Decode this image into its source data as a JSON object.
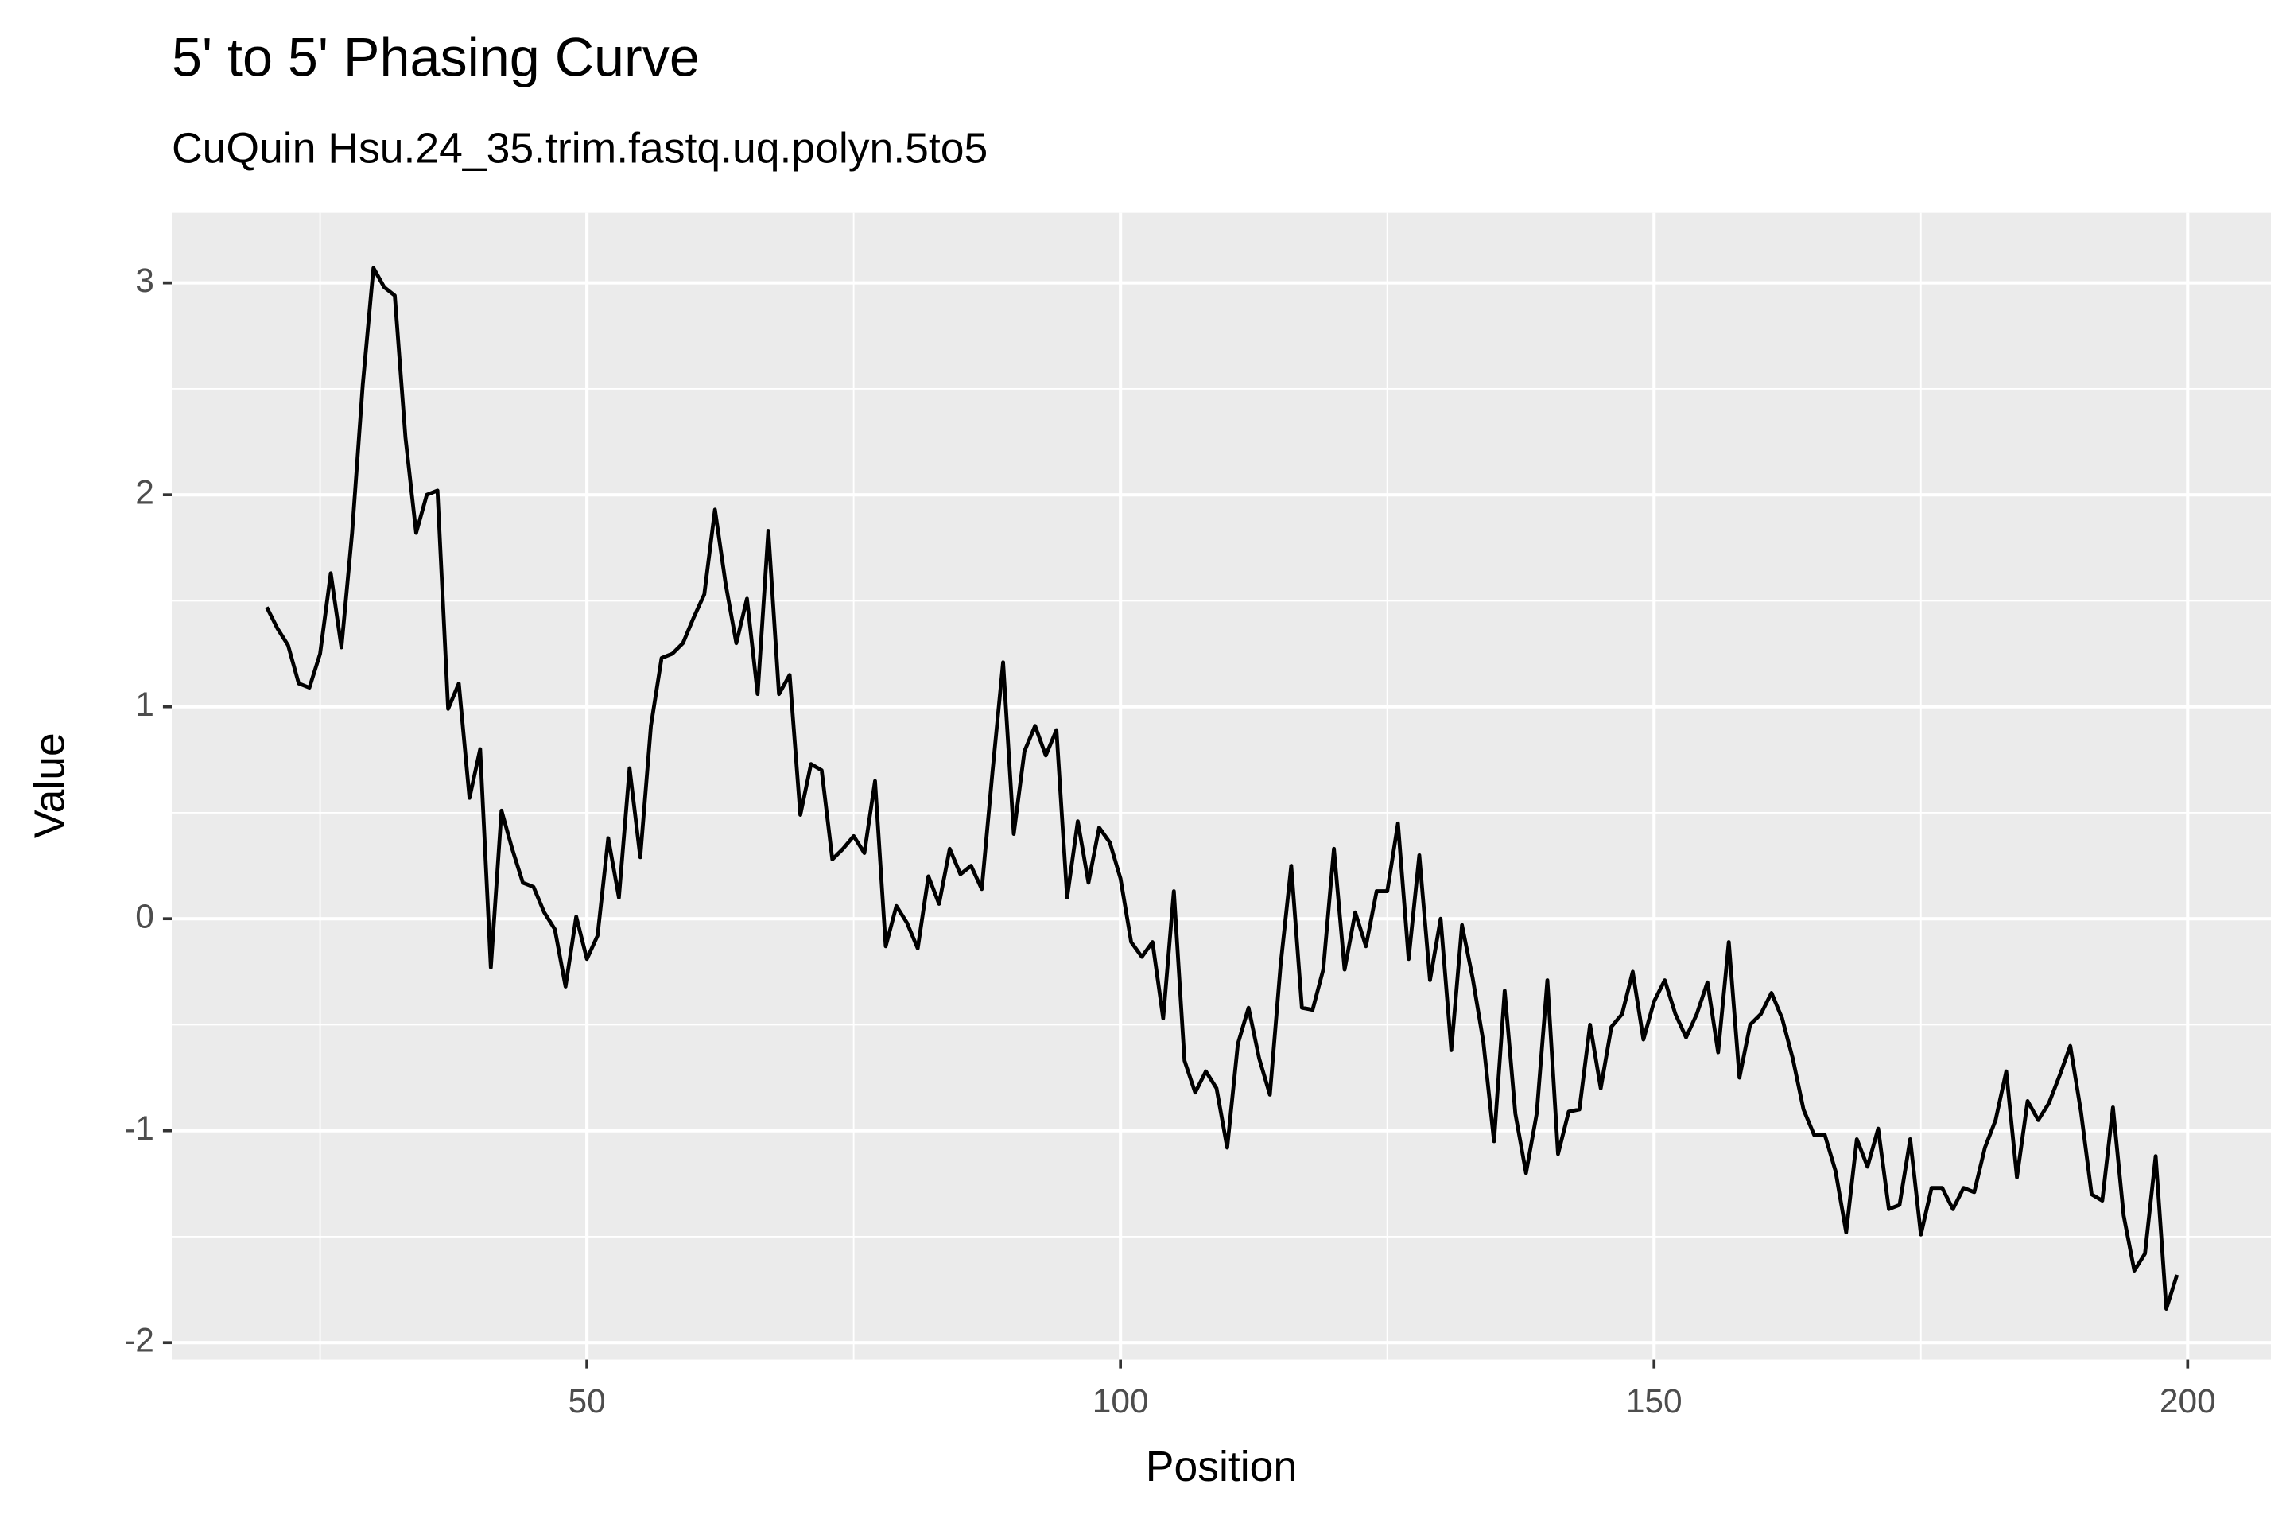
{
  "chart_data": {
    "type": "line",
    "title": "5' to 5' Phasing Curve",
    "subtitle": "CuQuin Hsu.24_35.trim.fastq.uq.polyn.5to5",
    "x_label": "Position",
    "y_label": "Value",
    "color": "#000000",
    "grid": true,
    "xlim": [
      11.1,
      207.8
    ],
    "ylim": [
      -2.08,
      3.33
    ],
    "xticks": [
      50,
      100,
      150,
      200
    ],
    "yticks": [
      -2,
      -1,
      0,
      1,
      2,
      3
    ],
    "x_minor_ticks": [
      25,
      75,
      125,
      175
    ],
    "y_minor_ticks": [
      -1.5,
      -0.5,
      0.5,
      1.5,
      2.5
    ],
    "x": [
      20,
      21,
      22,
      23,
      24,
      25,
      26,
      27,
      28,
      29,
      30,
      31,
      32,
      33,
      34,
      35,
      36,
      37,
      38,
      39,
      40,
      41,
      42,
      43,
      44,
      45,
      46,
      47,
      48,
      49,
      50,
      51,
      52,
      53,
      54,
      55,
      56,
      57,
      58,
      59,
      60,
      61,
      62,
      63,
      64,
      65,
      66,
      67,
      68,
      69,
      70,
      71,
      72,
      73,
      74,
      75,
      76,
      77,
      78,
      79,
      80,
      81,
      82,
      83,
      84,
      85,
      86,
      87,
      88,
      89,
      90,
      91,
      92,
      93,
      94,
      95,
      96,
      97,
      98,
      99,
      100,
      101,
      102,
      103,
      104,
      105,
      106,
      107,
      108,
      109,
      110,
      111,
      112,
      113,
      114,
      115,
      116,
      117,
      118,
      119,
      120,
      121,
      122,
      123,
      124,
      125,
      126,
      127,
      128,
      129,
      130,
      131,
      132,
      133,
      134,
      135,
      136,
      137,
      138,
      139,
      140,
      141,
      142,
      143,
      144,
      145,
      146,
      147,
      148,
      149,
      150,
      151,
      152,
      153,
      154,
      155,
      156,
      157,
      158,
      159,
      160,
      161,
      162,
      163,
      164,
      165,
      166,
      167,
      168,
      169,
      170,
      171,
      172,
      173,
      174,
      175,
      176,
      177,
      178,
      179,
      180,
      181,
      182,
      183,
      184,
      185,
      186,
      187,
      188,
      189,
      190,
      191,
      192,
      193,
      194,
      195,
      196,
      197,
      198,
      199
    ],
    "values": [
      1.47,
      1.37,
      1.29,
      1.11,
      1.09,
      1.25,
      1.63,
      1.28,
      1.82,
      2.52,
      3.07,
      2.98,
      2.94,
      2.27,
      1.82,
      2.0,
      2.02,
      0.99,
      1.11,
      0.57,
      0.8,
      -0.23,
      0.51,
      0.33,
      0.17,
      0.15,
      0.03,
      -0.05,
      -0.32,
      0.01,
      -0.19,
      -0.08,
      0.38,
      0.1,
      0.71,
      0.29,
      0.91,
      1.23,
      1.25,
      1.3,
      1.42,
      1.53,
      1.93,
      1.58,
      1.3,
      1.51,
      1.06,
      1.83,
      1.06,
      1.15,
      0.49,
      0.73,
      0.7,
      0.28,
      0.33,
      0.39,
      0.31,
      0.65,
      -0.13,
      0.06,
      -0.02,
      -0.14,
      0.2,
      0.07,
      0.33,
      0.21,
      0.25,
      0.14,
      0.69,
      1.21,
      0.4,
      0.79,
      0.91,
      0.77,
      0.89,
      0.1,
      0.46,
      0.17,
      0.43,
      0.36,
      0.19,
      -0.11,
      -0.18,
      -0.11,
      -0.47,
      0.13,
      -0.67,
      -0.82,
      -0.72,
      -0.8,
      -1.08,
      -0.59,
      -0.42,
      -0.66,
      -0.83,
      -0.22,
      0.25,
      -0.42,
      -0.43,
      -0.24,
      0.33,
      -0.24,
      0.03,
      -0.13,
      0.13,
      0.13,
      0.45,
      -0.19,
      0.3,
      -0.29,
      0.0,
      -0.62,
      -0.03,
      -0.28,
      -0.58,
      -1.05,
      -0.34,
      -0.92,
      -1.2,
      -0.92,
      -0.29,
      -1.11,
      -0.91,
      -0.9,
      -0.5,
      -0.8,
      -0.51,
      -0.45,
      -0.25,
      -0.57,
      -0.39,
      -0.29,
      -0.45,
      -0.56,
      -0.45,
      -0.3,
      -0.63,
      -0.11,
      -0.75,
      -0.5,
      -0.45,
      -0.35,
      -0.47,
      -0.66,
      -0.9,
      -1.02,
      -1.02,
      -1.19,
      -1.48,
      -1.04,
      -1.17,
      -0.99,
      -1.37,
      -1.35,
      -1.04,
      -1.49,
      -1.27,
      -1.27,
      -1.37,
      -1.27,
      -1.29,
      -1.08,
      -0.95,
      -0.72,
      -1.22,
      -0.86,
      -0.95,
      -0.87,
      -0.74,
      -0.6,
      -0.91,
      -1.3,
      -1.33,
      -0.89,
      -1.4,
      -1.66,
      -1.58,
      -1.12,
      -1.84,
      -1.68
    ]
  }
}
